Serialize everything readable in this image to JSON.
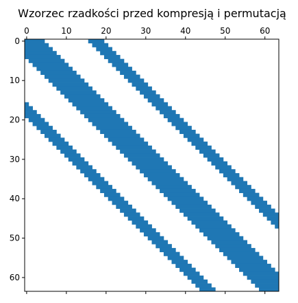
{
  "chart_data": {
    "type": "heatmap",
    "subtype": "sparsity-pattern",
    "title": "Wzorzec rzadkości przed kompresją i permutacją",
    "size": 64,
    "xlim": [
      0,
      63
    ],
    "ylim": [
      0,
      63
    ],
    "x_axis_position": "top",
    "x_ticks": [
      "0",
      "10",
      "20",
      "30",
      "40",
      "50",
      "60"
    ],
    "y_ticks": [
      "0",
      "10",
      "20",
      "30",
      "40",
      "50",
      "60"
    ],
    "marker_color": "#1f77b4",
    "grid": false,
    "pattern": {
      "description_offsets": "nonzero where column - row is in [-4, 4] (main band) or [16, 19] (upper band) or [-19, -16] (lower band)",
      "main_band": [
        -4,
        4
      ],
      "upper_band": [
        16,
        19
      ],
      "lower_band": [
        -19,
        -16
      ]
    }
  }
}
